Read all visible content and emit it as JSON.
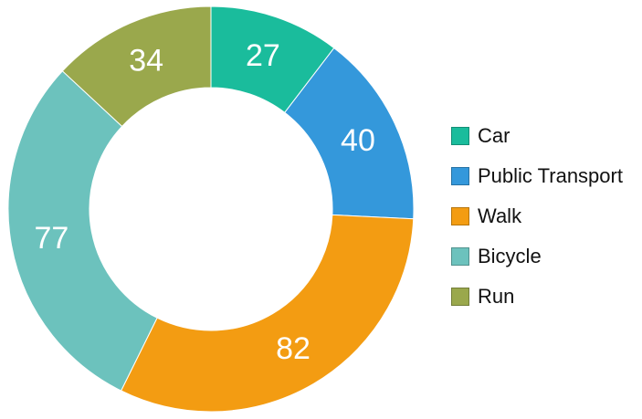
{
  "chart_data": {
    "type": "pie",
    "donut": true,
    "title": "",
    "categories": [
      "Car",
      "Public Transport",
      "Walk",
      "Bicycle",
      "Run"
    ],
    "values": [
      27,
      40,
      82,
      77,
      34
    ],
    "colors": [
      "#1abc9c",
      "#3498db",
      "#f39c12",
      "#6cc2bd",
      "#9aa84c"
    ],
    "legend_position": "right"
  }
}
